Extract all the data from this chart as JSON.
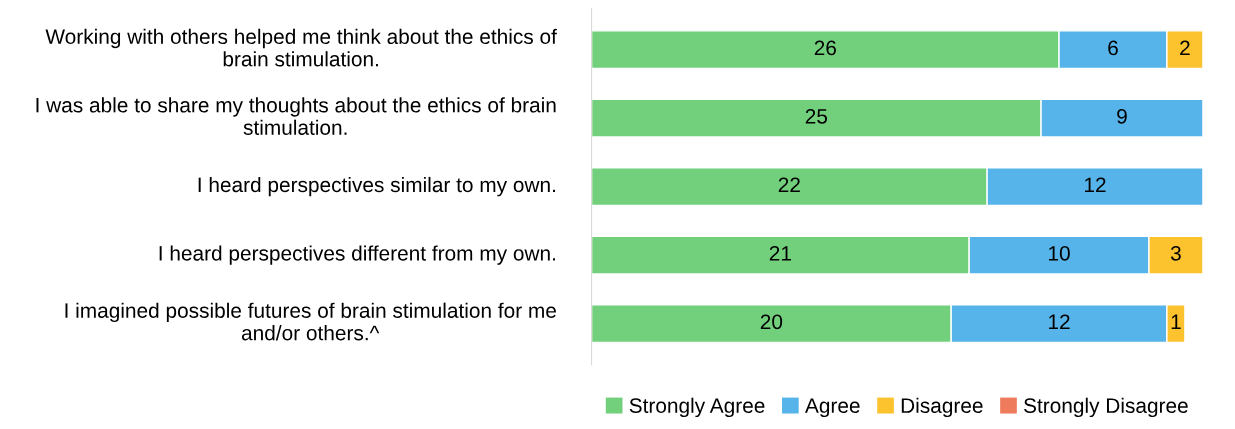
{
  "chart_data": {
    "type": "bar",
    "orientation": "horizontal",
    "stacked": true,
    "data_labels": true,
    "legend": "bottom",
    "grid": false,
    "categories": [
      "Working with others helped me think about the ethics of brain stimulation.",
      "I was able to share my thoughts about the ethics of brain stimulation.",
      "I heard perspectives similar to my own.",
      "I heard perspectives different from my own.",
      "I imagined possible futures of brain stimulation for me and/or others.^"
    ],
    "series": [
      {
        "name": "Strongly Agree",
        "color": "#72d07c",
        "values": [
          26,
          25,
          22,
          21,
          20
        ]
      },
      {
        "name": "Agree",
        "color": "#56b4ea",
        "values": [
          6,
          9,
          12,
          10,
          12
        ]
      },
      {
        "name": "Disagree",
        "color": "#fcc32e",
        "values": [
          2,
          null,
          null,
          3,
          1
        ]
      },
      {
        "name": "Strongly Disagree",
        "color": "#ee7b5b",
        "values": [
          null,
          null,
          null,
          null,
          null
        ]
      }
    ]
  }
}
